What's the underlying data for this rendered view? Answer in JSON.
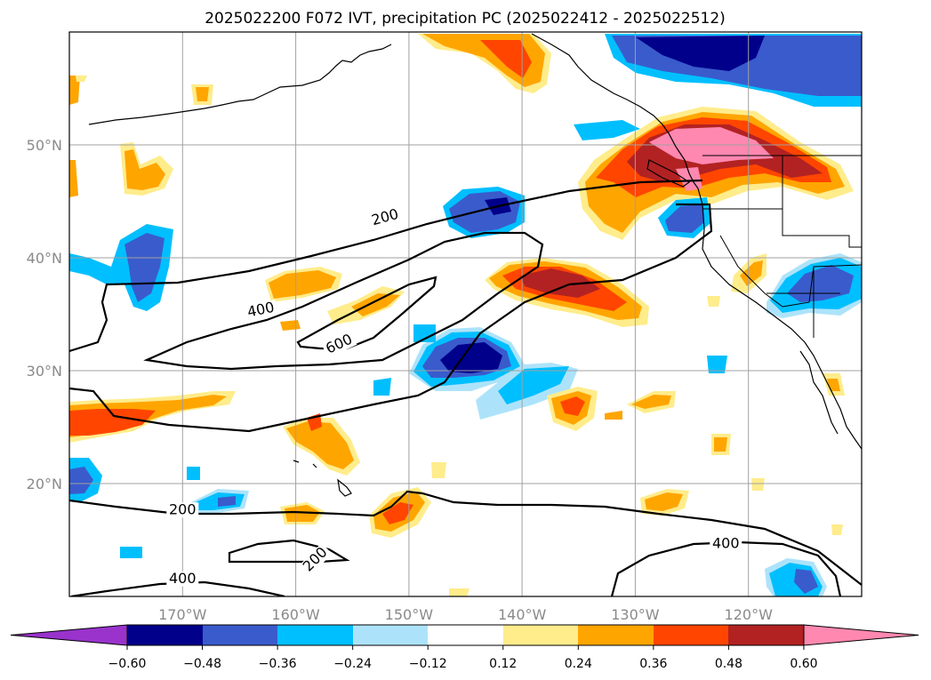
{
  "title": "2025022200 F072 IVT, precipitation PC (2025022412 - 2025022512)",
  "map": {
    "lon_range": [
      -180,
      -110
    ],
    "lat_range": [
      10,
      60
    ],
    "lon_ticks": [
      {
        "lon": -170,
        "label": "170°W"
      },
      {
        "lon": -160,
        "label": "160°W"
      },
      {
        "lon": -150,
        "label": "150°W"
      },
      {
        "lon": -140,
        "label": "140°W"
      },
      {
        "lon": -130,
        "label": "130°W"
      },
      {
        "lon": -120,
        "label": "120°W"
      }
    ],
    "lat_ticks": [
      {
        "lat": 50,
        "label": "50°N"
      },
      {
        "lat": 40,
        "label": "40°N"
      },
      {
        "lat": 30,
        "label": "30°N"
      },
      {
        "lat": 20,
        "label": "20°N"
      }
    ],
    "grid": true
  },
  "ivt_contour_labels": [
    {
      "text": "200",
      "lon": -152.0,
      "lat": 43.2,
      "rot": -15
    },
    {
      "text": "400",
      "lon": -163.0,
      "lat": 35.0,
      "rot": -12
    },
    {
      "text": "600",
      "lon": -156.0,
      "lat": 32.0,
      "rot": -25
    },
    {
      "text": "200",
      "lon": -170.0,
      "lat": 17.3,
      "rot": 0
    },
    {
      "text": "200",
      "lon": -158.0,
      "lat": 13.0,
      "rot": -45
    },
    {
      "text": "400",
      "lon": -122.0,
      "lat": 14.3,
      "rot": 0
    },
    {
      "text": "400",
      "lon": -170.0,
      "lat": 11.2,
      "rot": 0
    }
  ],
  "colorbar": {
    "levels": [
      "−0.60",
      "−0.48",
      "−0.36",
      "−0.24",
      "−0.12",
      "0.12",
      "0.24",
      "0.36",
      "0.48",
      "0.60"
    ],
    "colors": {
      "lt_neg60": "#9933cc",
      "neg60_48": "#00008b",
      "neg48_36": "#3a5bcc",
      "neg36_24": "#00bfff",
      "neg24_12": "#ade3fa",
      "neg12_12": "#ffffff",
      "p12_24": "#ffec8b",
      "p24_36": "#ffa500",
      "p36_48": "#ff4500",
      "p48_60": "#b22222",
      "gt60": "#ff88b0"
    }
  }
}
